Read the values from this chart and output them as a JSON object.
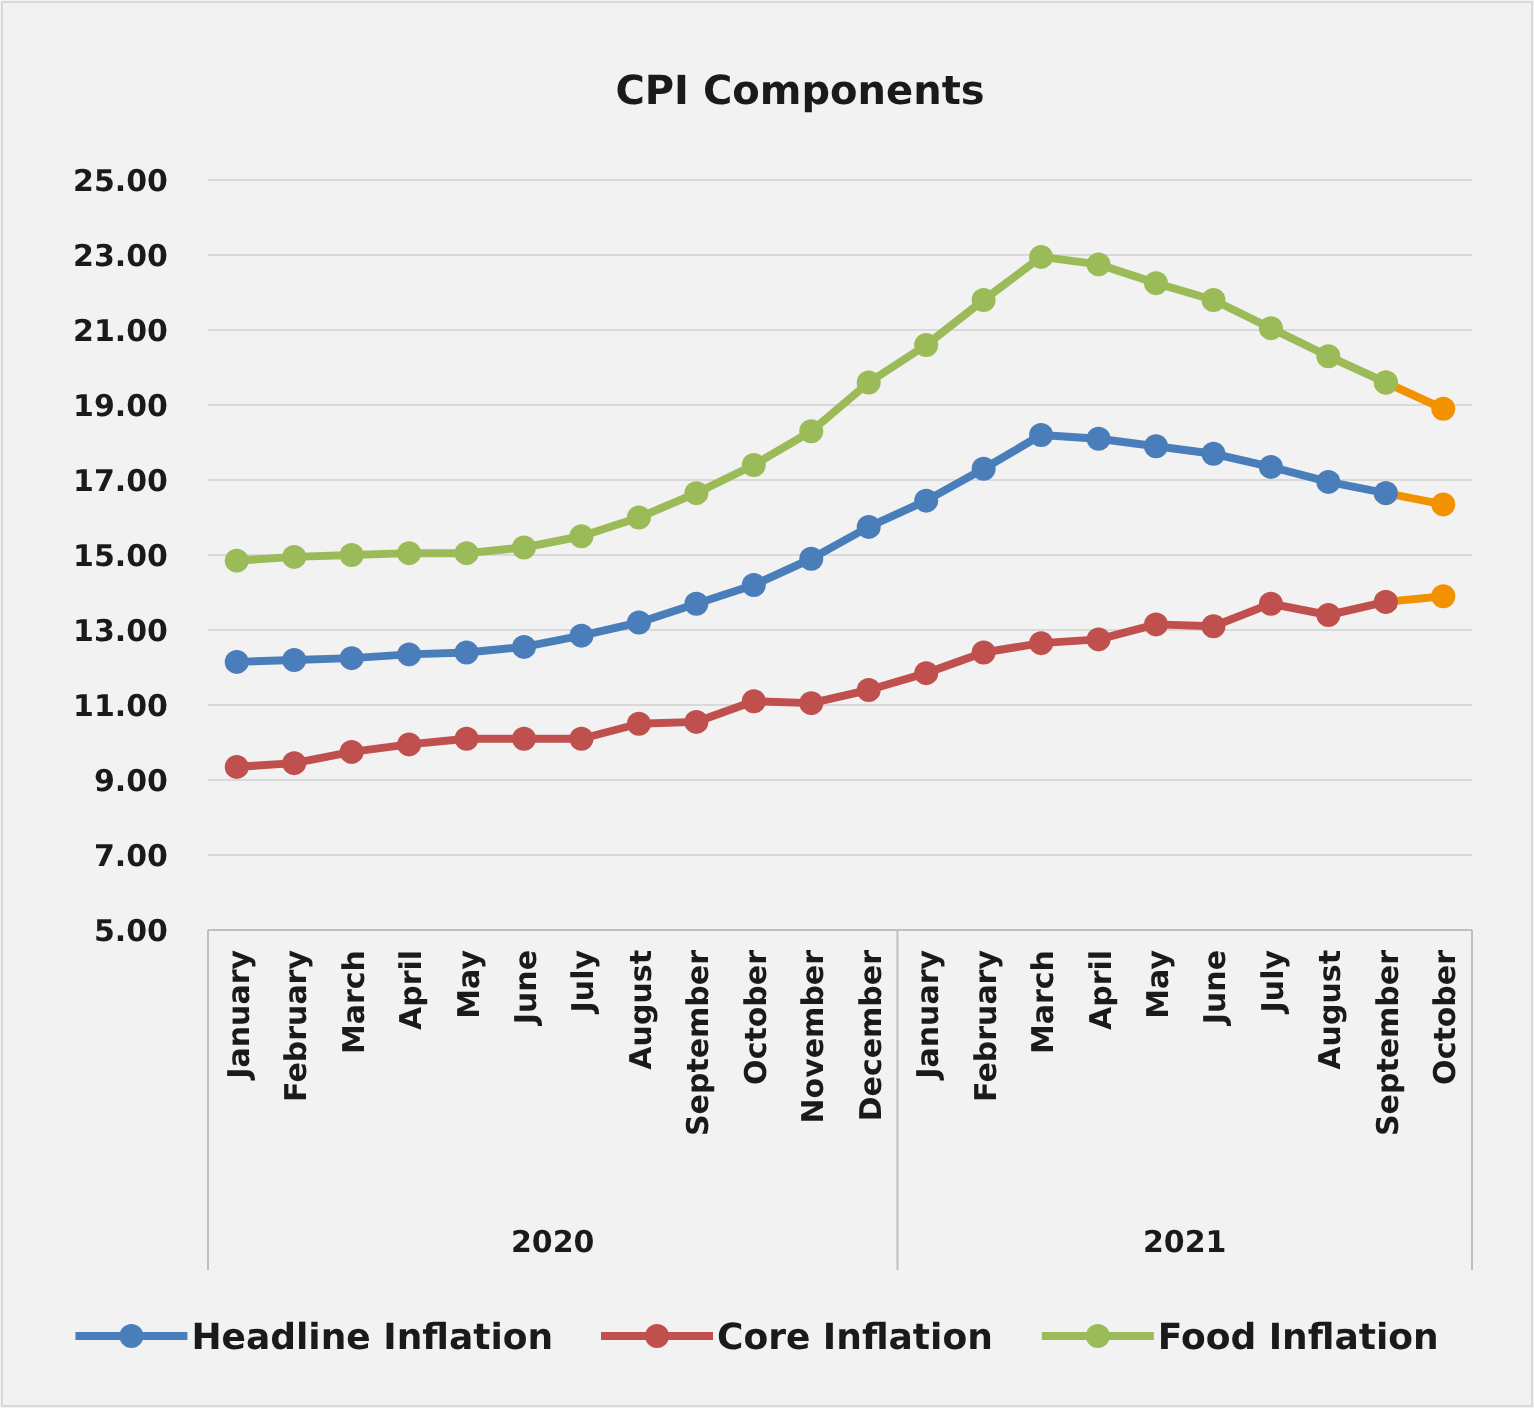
{
  "chart_data": {
    "type": "line",
    "title": "CPI Components",
    "categories": [
      "January",
      "February",
      "March",
      "April",
      "May",
      "June",
      "July",
      "August",
      "September",
      "October",
      "November",
      "December",
      "January",
      "February",
      "March",
      "April",
      "May",
      "June",
      "July",
      "August",
      "September",
      "October"
    ],
    "annotations": [
      "2020",
      "2021"
    ],
    "series": [
      {
        "name": "Headline Inflation",
        "color": "#4a7ebb",
        "values": [
          12.15,
          12.2,
          12.25,
          12.35,
          12.4,
          12.55,
          12.85,
          13.2,
          13.7,
          14.2,
          14.9,
          15.75,
          16.45,
          17.3,
          18.2,
          18.1,
          17.9,
          17.7,
          17.35,
          16.95,
          16.65,
          null
        ]
      },
      {
        "name": "Core Inflation",
        "color": "#c0504d",
        "values": [
          9.35,
          9.45,
          9.75,
          9.95,
          10.1,
          10.1,
          10.1,
          10.5,
          10.55,
          11.1,
          11.05,
          11.4,
          11.85,
          12.4,
          12.65,
          12.75,
          13.15,
          13.1,
          13.7,
          13.4,
          13.75,
          null
        ]
      },
      {
        "name": "Food Inflation",
        "color": "#9bbb59",
        "values": [
          14.85,
          14.95,
          15.0,
          15.05,
          15.05,
          15.2,
          15.5,
          16.0,
          16.65,
          17.4,
          18.3,
          19.6,
          20.6,
          21.8,
          22.95,
          22.75,
          22.25,
          21.8,
          21.05,
          20.3,
          19.6,
          null
        ]
      },
      {
        "color": "#f39200",
        "values": [
          null,
          null,
          null,
          null,
          null,
          null,
          null,
          null,
          null,
          null,
          null,
          null,
          null,
          null,
          null,
          null,
          null,
          null,
          null,
          null,
          16.65,
          16.35
        ]
      },
      {
        "color": "#f39200",
        "values": [
          null,
          null,
          null,
          null,
          null,
          null,
          null,
          null,
          null,
          null,
          null,
          null,
          null,
          null,
          null,
          null,
          null,
          null,
          null,
          null,
          13.75,
          13.9
        ]
      },
      {
        "color": "#f39200",
        "values": [
          null,
          null,
          null,
          null,
          null,
          null,
          null,
          null,
          null,
          null,
          null,
          null,
          null,
          null,
          null,
          null,
          null,
          null,
          null,
          null,
          19.6,
          18.9
        ]
      }
    ],
    "ylim": [
      5,
      25
    ],
    "yticks": [
      {
        "value": 5,
        "label": "5.00"
      },
      {
        "value": 7,
        "label": "7.00"
      },
      {
        "value": 9,
        "label": "9.00"
      },
      {
        "value": 11,
        "label": "11.00"
      },
      {
        "value": 13,
        "label": "13.00"
      },
      {
        "value": 15,
        "label": "15.00"
      },
      {
        "value": 17,
        "label": "17.00"
      },
      {
        "value": 19,
        "label": "19.00"
      },
      {
        "value": 21,
        "label": "21.00"
      },
      {
        "value": 23,
        "label": "23.00"
      },
      {
        "value": 25,
        "label": "25.00"
      }
    ],
    "grid": "y",
    "legend": "bottom",
    "marker": "circle",
    "line_style": "solid"
  }
}
